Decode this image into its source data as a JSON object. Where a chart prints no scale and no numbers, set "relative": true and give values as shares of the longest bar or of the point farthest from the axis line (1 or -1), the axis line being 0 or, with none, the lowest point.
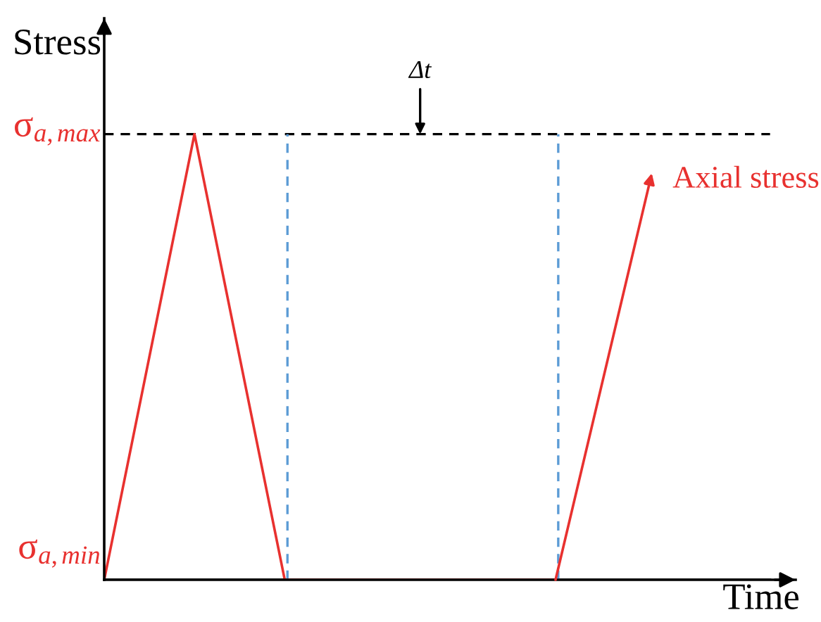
{
  "chart_data": {
    "type": "line",
    "xlabel": "Time",
    "ylabel": "Stress",
    "relative": true,
    "categories": [
      null,
      null,
      null,
      null,
      null,
      null,
      null
    ],
    "series": [
      {
        "color": "#e8312f",
        "values": [
          0,
          1,
          0,
          0,
          0,
          0,
          null
        ]
      }
    ],
    "ref_lines": [
      {
        "axis": "y",
        "value": 1,
        "label": "σ$_{a,max}$",
        "color": "#000000",
        "line_style": "dashed"
      },
      {
        "axis": "y",
        "value": 0,
        "label": "σ$_{a,min}$",
        "color": "#000000",
        "line_style": "solid"
      }
    ],
    "annotations": [
      {
        "text": "Δt",
        "y": 1
      },
      "Axial stress"
    ],
    "line_style": "solid"
  }
}
